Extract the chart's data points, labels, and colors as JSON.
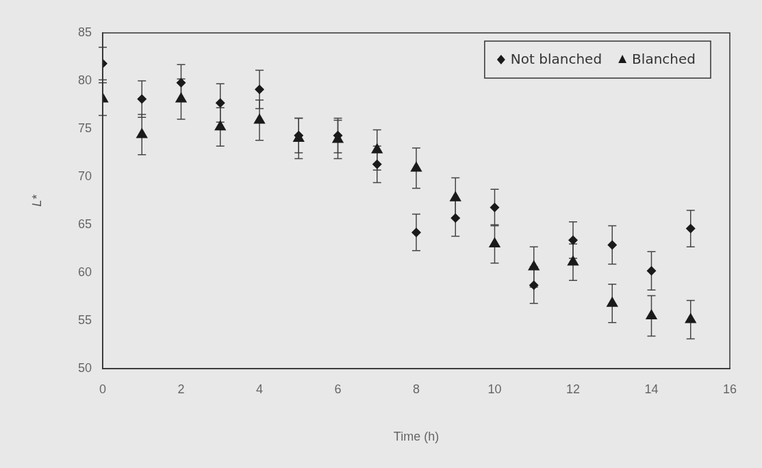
{
  "chart_data": {
    "type": "scatter",
    "xlabel": "Time (h)",
    "ylabel": "L*",
    "xlim": [
      0,
      16
    ],
    "xticks": [
      0,
      2,
      4,
      6,
      8,
      10,
      12,
      14,
      16
    ],
    "ylim": [
      50,
      85
    ],
    "yticks": [
      50,
      55,
      60,
      65,
      70,
      75,
      80,
      85
    ],
    "grid": false,
    "legend": "top right",
    "x": [
      0,
      1,
      2,
      3,
      4,
      5,
      6,
      7,
      8,
      9,
      10,
      11,
      12,
      13,
      14,
      15
    ],
    "series": [
      {
        "name": "Not blanched",
        "color": "#1a1a1a",
        "marker": "diamond",
        "values": [
          81.8,
          78.1,
          79.8,
          77.7,
          79.1,
          74.3,
          74.3,
          71.3,
          64.2,
          65.7,
          66.8,
          58.7,
          63.4,
          62.9,
          60.2,
          64.6
        ],
        "errors": [
          1.7,
          1.9,
          1.9,
          2.0,
          2.0,
          1.8,
          1.8,
          1.9,
          1.9,
          1.9,
          1.9,
          1.9,
          1.9,
          2.0,
          2.0,
          1.9
        ]
      },
      {
        "name": "Blanched",
        "color": "#1a1a1a",
        "marker": "triangle",
        "values": [
          78.1,
          74.4,
          78.1,
          75.2,
          75.9,
          74.0,
          73.9,
          72.8,
          70.9,
          67.8,
          63.0,
          60.6,
          61.1,
          56.8,
          55.5,
          55.1
        ],
        "errors": [
          1.7,
          2.1,
          2.1,
          2.0,
          2.1,
          2.1,
          2.0,
          2.1,
          2.1,
          2.1,
          2.0,
          2.1,
          1.9,
          2.0,
          2.1,
          2.0
        ]
      }
    ]
  }
}
